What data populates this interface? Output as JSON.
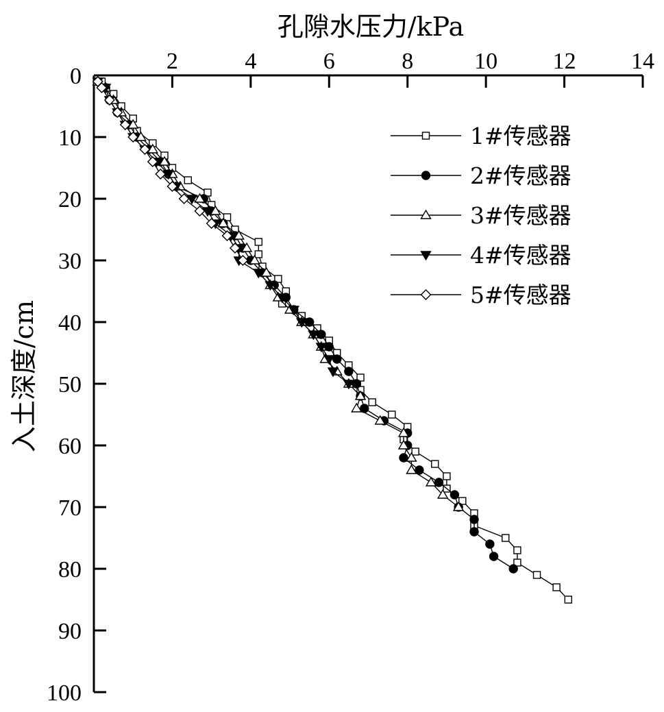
{
  "chart_data": {
    "type": "line",
    "title": "",
    "xlabel": "孔隙水压力/kPa",
    "ylabel": "入土深度/cm",
    "xlim": [
      0,
      14
    ],
    "ylim": [
      0,
      100
    ],
    "y_inverted": true,
    "x_axis_position": "top",
    "xticks": [
      2,
      4,
      6,
      8,
      10,
      12,
      14
    ],
    "yticks": [
      0,
      10,
      20,
      30,
      40,
      50,
      60,
      70,
      80,
      90,
      100
    ],
    "grid": false,
    "legend_position": "top-right",
    "series": [
      {
        "name": "1#传感器",
        "marker": "square-open",
        "points": [
          [
            0.2,
            1
          ],
          [
            0.3,
            2
          ],
          [
            0.5,
            3
          ],
          [
            0.7,
            5
          ],
          [
            1.0,
            7
          ],
          [
            1.1,
            9
          ],
          [
            1.5,
            11
          ],
          [
            1.8,
            13
          ],
          [
            2.0,
            15
          ],
          [
            2.4,
            17
          ],
          [
            2.9,
            19
          ],
          [
            3.0,
            21
          ],
          [
            3.4,
            23
          ],
          [
            3.6,
            25
          ],
          [
            4.2,
            27
          ],
          [
            4.2,
            29
          ],
          [
            4.3,
            31
          ],
          [
            4.7,
            33
          ],
          [
            4.9,
            35
          ],
          [
            4.8,
            37
          ],
          [
            5.3,
            39
          ],
          [
            5.7,
            41
          ],
          [
            6.0,
            43
          ],
          [
            6.2,
            45
          ],
          [
            6.5,
            47
          ],
          [
            6.8,
            49
          ],
          [
            6.8,
            51
          ],
          [
            7.1,
            53
          ],
          [
            7.6,
            55
          ],
          [
            8.0,
            57
          ],
          [
            7.9,
            59
          ],
          [
            8.2,
            61
          ],
          [
            8.7,
            63
          ],
          [
            9.0,
            65
          ],
          [
            9.0,
            67
          ],
          [
            9.4,
            69
          ],
          [
            9.7,
            71
          ],
          [
            9.7,
            73
          ],
          [
            10.5,
            75
          ],
          [
            10.8,
            77
          ],
          [
            10.8,
            79
          ],
          [
            11.3,
            81
          ],
          [
            11.8,
            83
          ],
          [
            12.1,
            85
          ]
        ]
      },
      {
        "name": "2#传感器",
        "marker": "circle-filled",
        "points": [
          [
            0.1,
            1
          ],
          [
            0.3,
            2
          ],
          [
            0.4,
            4
          ],
          [
            0.6,
            6
          ],
          [
            0.9,
            8
          ],
          [
            1.1,
            10
          ],
          [
            1.4,
            12
          ],
          [
            1.7,
            14
          ],
          [
            1.9,
            16
          ],
          [
            2.1,
            18
          ],
          [
            2.8,
            20
          ],
          [
            3.0,
            22
          ],
          [
            3.3,
            24
          ],
          [
            3.6,
            26
          ],
          [
            3.8,
            28
          ],
          [
            4.0,
            30
          ],
          [
            4.3,
            32
          ],
          [
            4.6,
            34
          ],
          [
            4.9,
            36
          ],
          [
            5.1,
            38
          ],
          [
            5.5,
            40
          ],
          [
            5.8,
            42
          ],
          [
            6.0,
            44
          ],
          [
            6.2,
            46
          ],
          [
            6.5,
            48
          ],
          [
            6.7,
            50
          ],
          [
            6.8,
            52
          ],
          [
            6.9,
            54
          ],
          [
            7.4,
            56
          ],
          [
            8.0,
            58
          ],
          [
            8.0,
            60
          ],
          [
            7.9,
            62
          ],
          [
            8.3,
            64
          ],
          [
            8.8,
            66
          ],
          [
            9.2,
            68
          ],
          [
            9.3,
            70
          ],
          [
            9.7,
            72
          ],
          [
            9.7,
            74
          ],
          [
            10.1,
            76
          ],
          [
            10.2,
            78
          ],
          [
            10.7,
            80
          ]
        ]
      },
      {
        "name": "3#传感器",
        "marker": "triangle-open",
        "points": [
          [
            0.1,
            1
          ],
          [
            0.3,
            2
          ],
          [
            0.5,
            4
          ],
          [
            0.7,
            6
          ],
          [
            1.0,
            8
          ],
          [
            1.2,
            10
          ],
          [
            1.5,
            12
          ],
          [
            1.8,
            14
          ],
          [
            2.0,
            16
          ],
          [
            2.2,
            18
          ],
          [
            2.7,
            20
          ],
          [
            3.1,
            22
          ],
          [
            3.3,
            24
          ],
          [
            3.7,
            26
          ],
          [
            3.9,
            28
          ],
          [
            4.1,
            30
          ],
          [
            4.4,
            32
          ],
          [
            4.5,
            34
          ],
          [
            4.7,
            36
          ],
          [
            5.0,
            38
          ],
          [
            5.3,
            40
          ],
          [
            5.6,
            42
          ],
          [
            5.8,
            44
          ],
          [
            5.9,
            46
          ],
          [
            6.2,
            48
          ],
          [
            6.5,
            50
          ],
          [
            6.8,
            52
          ],
          [
            6.7,
            54
          ],
          [
            7.3,
            56
          ],
          [
            7.9,
            58
          ],
          [
            7.9,
            60
          ],
          [
            8.1,
            62
          ],
          [
            8.1,
            64
          ],
          [
            8.6,
            66
          ],
          [
            8.9,
            68
          ],
          [
            9.3,
            70
          ]
        ]
      },
      {
        "name": "4#传感器",
        "marker": "triangle-down-filled",
        "points": [
          [
            0.1,
            1
          ],
          [
            0.3,
            2
          ],
          [
            0.4,
            4
          ],
          [
            0.6,
            6
          ],
          [
            0.8,
            8
          ],
          [
            1.0,
            10
          ],
          [
            1.3,
            12
          ],
          [
            1.6,
            14
          ],
          [
            1.9,
            16
          ],
          [
            2.1,
            18
          ],
          [
            2.5,
            20
          ],
          [
            2.9,
            22
          ],
          [
            3.1,
            24
          ],
          [
            3.5,
            26
          ],
          [
            3.7,
            28
          ],
          [
            3.7,
            30
          ],
          [
            4.2,
            32
          ],
          [
            4.5,
            34
          ],
          [
            4.8,
            36
          ],
          [
            5.1,
            38
          ],
          [
            5.3,
            40
          ],
          [
            5.6,
            42
          ],
          [
            5.8,
            44
          ],
          [
            6.0,
            46
          ],
          [
            6.1,
            48
          ],
          [
            6.5,
            50
          ]
        ]
      },
      {
        "name": "5#传感器",
        "marker": "diamond-open",
        "points": [
          [
            0.1,
            1
          ],
          [
            0.2,
            2
          ],
          [
            0.4,
            4
          ],
          [
            0.6,
            6
          ],
          [
            0.8,
            8
          ],
          [
            1.0,
            10
          ],
          [
            1.3,
            12
          ],
          [
            1.5,
            14
          ],
          [
            1.7,
            16
          ],
          [
            2.0,
            18
          ],
          [
            2.3,
            20
          ],
          [
            2.7,
            22
          ],
          [
            3.0,
            24
          ],
          [
            3.4,
            26
          ],
          [
            3.6,
            28
          ],
          [
            3.8,
            30
          ]
        ]
      }
    ]
  }
}
